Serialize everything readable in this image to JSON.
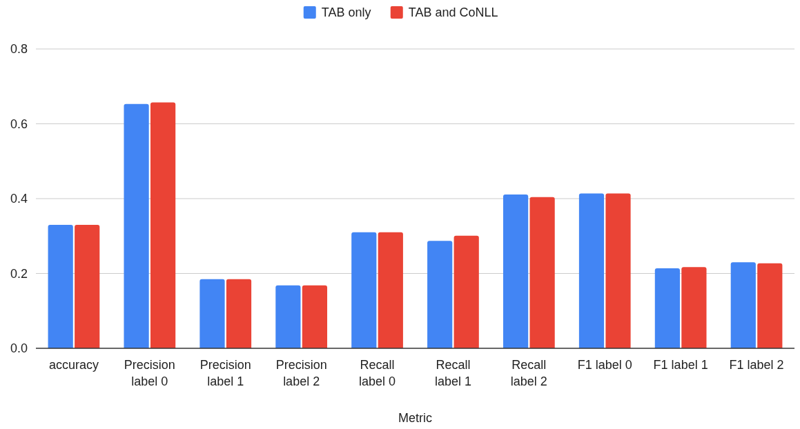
{
  "chart_data": {
    "type": "bar",
    "xlabel": "Metric",
    "categories": [
      "accuracy",
      "Precision label 0",
      "Precision label 1",
      "Precision label 2",
      "Recall label 0",
      "Recall label 1",
      "Recall label 2",
      "F1 label 0",
      "F1 label 1",
      "F1 label 2"
    ],
    "series": [
      {
        "name": "TAB only",
        "color": "#4285f4",
        "values": [
          0.33,
          0.653,
          0.185,
          0.168,
          0.31,
          0.287,
          0.411,
          0.414,
          0.214,
          0.23
        ]
      },
      {
        "name": "TAB and CoNLL",
        "color": "#ea4335",
        "values": [
          0.33,
          0.657,
          0.185,
          0.168,
          0.31,
          0.301,
          0.404,
          0.414,
          0.217,
          0.227
        ]
      }
    ],
    "ylim": [
      0,
      0.8
    ],
    "yticks": [
      {
        "value": 0,
        "label": "0.0"
      },
      0.2,
      0.4,
      0.6,
      0.8
    ],
    "grid": "y",
    "legend": "top"
  }
}
